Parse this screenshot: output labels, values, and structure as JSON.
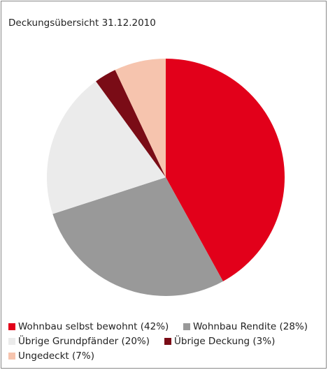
{
  "chart_data": {
    "type": "pie",
    "title": "Deckungsübersicht 31.12.2010",
    "categories": [
      "Wohnbau selbst bewohnt (42%)",
      "Wohnbau Rendite (28%)",
      "Übrige Grundpfänder (20%)",
      "Übrige Deckung (3%)",
      "Ungedeckt (7%)"
    ],
    "values": [
      42,
      28,
      20,
      3,
      7
    ],
    "colors": [
      "#e2001a",
      "#999999",
      "#ebebeb",
      "#7a0c16",
      "#f6c4ae"
    ]
  }
}
